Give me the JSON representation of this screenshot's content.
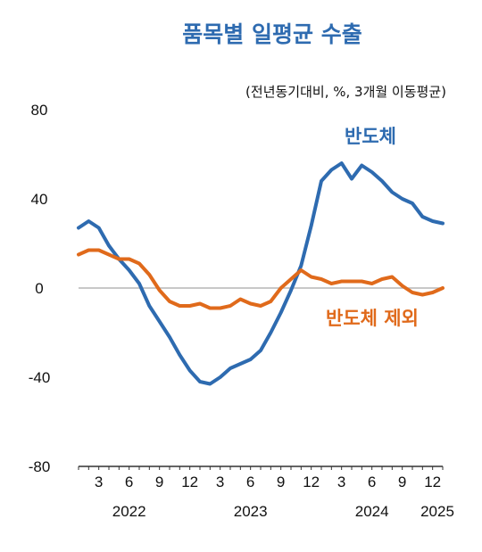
{
  "chart_data": {
    "type": "line",
    "title": "품목별 일평균 수출",
    "subtitle": "(전년동기대비, %, 3개월 이동평균)",
    "ylim": [
      -80,
      80
    ],
    "yticks": [
      80,
      40,
      0,
      -40,
      -80
    ],
    "x": [
      "2022-01",
      "2022-02",
      "2022-03",
      "2022-04",
      "2022-05",
      "2022-06",
      "2022-07",
      "2022-08",
      "2022-09",
      "2022-10",
      "2022-11",
      "2022-12",
      "2023-01",
      "2023-02",
      "2023-03",
      "2023-04",
      "2023-05",
      "2023-06",
      "2023-07",
      "2023-08",
      "2023-09",
      "2023-10",
      "2023-11",
      "2023-12",
      "2024-01",
      "2024-02",
      "2024-03",
      "2024-04",
      "2024-05",
      "2024-06",
      "2024-07",
      "2024-08",
      "2024-09",
      "2024-10",
      "2024-11",
      "2024-12",
      "2025-01"
    ],
    "xtick_labels": [
      {
        "x": "2022-03",
        "label": "3"
      },
      {
        "x": "2022-06",
        "label": "6"
      },
      {
        "x": "2022-09",
        "label": "9"
      },
      {
        "x": "2022-12",
        "label": "12"
      },
      {
        "x": "2023-03",
        "label": "3"
      },
      {
        "x": "2023-06",
        "label": "6"
      },
      {
        "x": "2023-09",
        "label": "9"
      },
      {
        "x": "2023-12",
        "label": "12"
      },
      {
        "x": "2024-03",
        "label": "3"
      },
      {
        "x": "2024-06",
        "label": "6"
      },
      {
        "x": "2024-09",
        "label": "9"
      },
      {
        "x": "2024-12",
        "label": "12"
      }
    ],
    "year_labels": [
      {
        "x": "2022-06",
        "label": "2022"
      },
      {
        "x": "2023-06",
        "label": "2023"
      },
      {
        "x": "2024-06",
        "label": "2024"
      },
      {
        "x": "2025-01",
        "label": "2025"
      }
    ],
    "series": [
      {
        "name": "반도체",
        "color": "#2e6bb0",
        "values": [
          27,
          30,
          27,
          19,
          13,
          8,
          2,
          -8,
          -15,
          -22,
          -30,
          -37,
          -42,
          -43,
          -40,
          -36,
          -34,
          -32,
          -28,
          -20,
          -11,
          -1,
          10,
          28,
          48,
          53,
          56,
          49,
          55,
          52,
          48,
          43,
          40,
          38,
          32,
          30,
          29
        ]
      },
      {
        "name": "반도체 제외",
        "color": "#e06a1b",
        "values": [
          15,
          17,
          17,
          15,
          13,
          13,
          11,
          6,
          -1,
          -6,
          -8,
          -8,
          -7,
          -9,
          -9,
          -8,
          -5,
          -7,
          -8,
          -6,
          0,
          4,
          8,
          5,
          4,
          2,
          3,
          3,
          3,
          2,
          4,
          5,
          1,
          -2,
          -3,
          -2,
          0
        ]
      }
    ],
    "zero_line": true,
    "grid": false,
    "legend": "direct labels"
  }
}
